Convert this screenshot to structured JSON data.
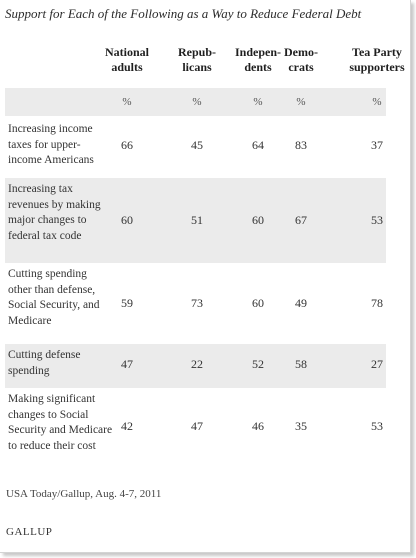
{
  "chart_data": {
    "type": "table",
    "title": "Support for Each of the Following as a Way to Reduce Federal Debt",
    "columns": [
      "National adults",
      "Republicans",
      "Independents",
      "Democrats",
      "Tea Party supporters"
    ],
    "column_headers": [
      [
        "National",
        "adults"
      ],
      [
        "Repub-",
        "licans"
      ],
      [
        "Indepen-",
        "dents"
      ],
      [
        "Demo-",
        "crats"
      ],
      [
        "Tea Party",
        "supporters"
      ]
    ],
    "unit_label": "%",
    "rows": [
      {
        "label": "Increasing income taxes for upper-income Americans",
        "label_lines": [
          "Increasing income",
          "taxes for upper-",
          "income Americans"
        ],
        "values": [
          66,
          45,
          64,
          83,
          37
        ]
      },
      {
        "label": "Increasing tax revenues by making major changes to federal tax code",
        "label_lines": [
          "Increasing tax",
          "revenues by making",
          "major changes to",
          "federal tax code"
        ],
        "values": [
          60,
          51,
          60,
          67,
          53
        ]
      },
      {
        "label": "Cutting spending other than defense, Social Security, and Medicare",
        "label_lines": [
          "Cutting spending",
          "other than defense,",
          "Social Security, and",
          "Medicare"
        ],
        "values": [
          59,
          73,
          60,
          49,
          78
        ]
      },
      {
        "label": "Cutting defense spending",
        "label_lines": [
          "Cutting defense",
          "spending"
        ],
        "values": [
          47,
          22,
          52,
          58,
          27
        ]
      },
      {
        "label": "Making significant changes to Social Security and Medicare to reduce their cost",
        "label_lines": [
          "Making significant",
          "changes to Social",
          "Security and Medicare",
          "to reduce their cost"
        ],
        "values": [
          42,
          47,
          46,
          35,
          53
        ]
      }
    ]
  },
  "source": "USA Today/Gallup, Aug. 4-7, 2011",
  "brand": "GALLUP"
}
